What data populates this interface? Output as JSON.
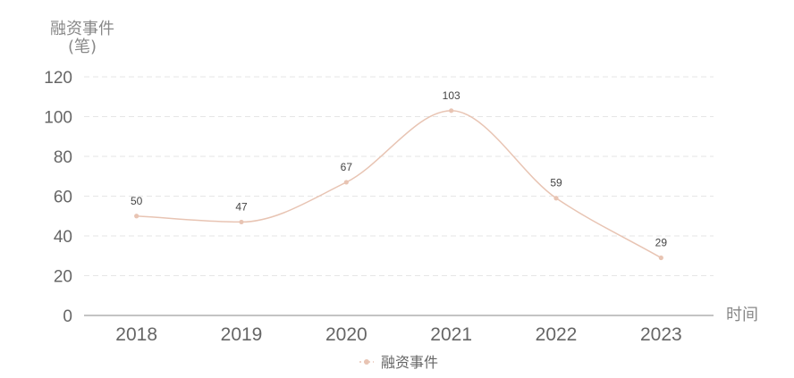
{
  "chart_data": {
    "type": "line",
    "title": "",
    "ylabel": "融资事件",
    "yunit": "(笔)",
    "xlabel": "时间",
    "categories": [
      "2018",
      "2019",
      "2020",
      "2021",
      "2022",
      "2023"
    ],
    "series": [
      {
        "name": "融资事件",
        "values": [
          50,
          47,
          67,
          103,
          59,
          29
        ],
        "color": "#e8c4b3"
      }
    ],
    "ylim": [
      0,
      120
    ],
    "yticks": [
      0,
      20,
      40,
      60,
      80,
      100,
      120
    ],
    "grid": true,
    "smooth": true,
    "show_data_labels": true,
    "legend_position": "bottom"
  }
}
